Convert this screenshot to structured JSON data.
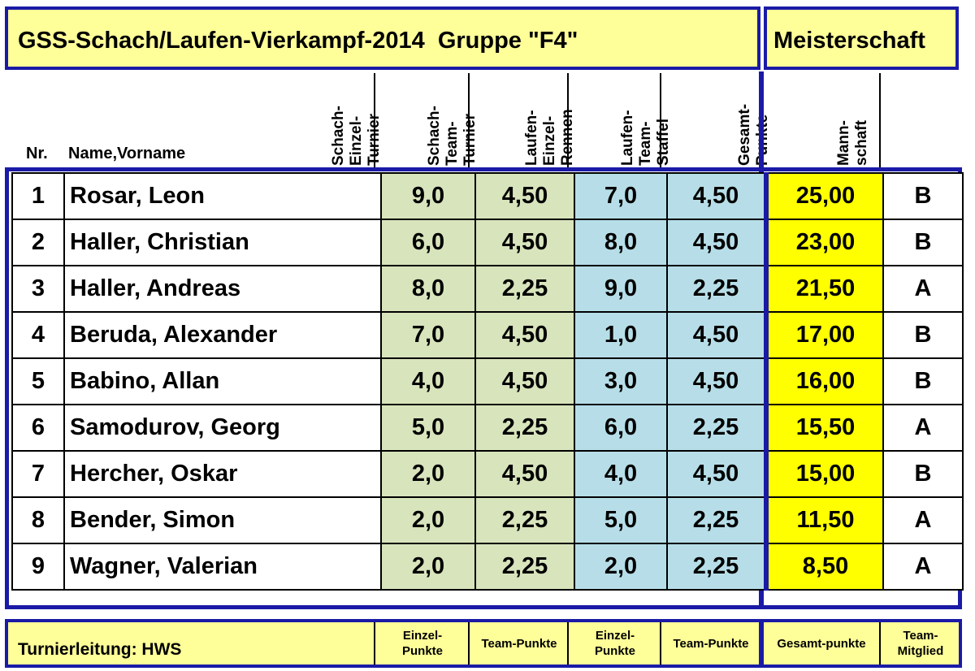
{
  "title": "GSS-Schach/Laufen-Vierkampf-2014  Gruppe \"F4\"",
  "championship": "Meisterschaft",
  "header": {
    "nr": "Nr.",
    "name": "Name,Vorname",
    "columns": [
      "Schach-\nEinzel-\nTurnier",
      "Schach-\nTeam-\nTurnier",
      "Laufen-\nEinzel-\nRennen",
      "Laufen-\nTeam-\nStaffel",
      "Gesamt-\nPunkte",
      "Mann-\nschaft"
    ]
  },
  "rows": [
    {
      "nr": "1",
      "name": "Rosar, Leon",
      "schach_einzel": "9,0",
      "schach_team": "4,50",
      "laufen_einzel": "7,0",
      "laufen_team": "4,50",
      "gesamt": "25,00",
      "mannschaft": "B"
    },
    {
      "nr": "2",
      "name": "Haller, Christian",
      "schach_einzel": "6,0",
      "schach_team": "4,50",
      "laufen_einzel": "8,0",
      "laufen_team": "4,50",
      "gesamt": "23,00",
      "mannschaft": "B"
    },
    {
      "nr": "3",
      "name": "Haller, Andreas",
      "schach_einzel": "8,0",
      "schach_team": "2,25",
      "laufen_einzel": "9,0",
      "laufen_team": "2,25",
      "gesamt": "21,50",
      "mannschaft": "A"
    },
    {
      "nr": "4",
      "name": "Beruda, Alexander",
      "schach_einzel": "7,0",
      "schach_team": "4,50",
      "laufen_einzel": "1,0",
      "laufen_team": "4,50",
      "gesamt": "17,00",
      "mannschaft": "B"
    },
    {
      "nr": "5",
      "name": "Babino, Allan",
      "schach_einzel": "4,0",
      "schach_team": "4,50",
      "laufen_einzel": "3,0",
      "laufen_team": "4,50",
      "gesamt": "16,00",
      "mannschaft": "B"
    },
    {
      "nr": "6",
      "name": "Samodurov, Georg",
      "schach_einzel": "5,0",
      "schach_team": "2,25",
      "laufen_einzel": "6,0",
      "laufen_team": "2,25",
      "gesamt": "15,50",
      "mannschaft": "A"
    },
    {
      "nr": "7",
      "name": "Hercher, Oskar",
      "schach_einzel": "2,0",
      "schach_team": "4,50",
      "laufen_einzel": "4,0",
      "laufen_team": "4,50",
      "gesamt": "15,00",
      "mannschaft": "B"
    },
    {
      "nr": "8",
      "name": "Bender, Simon",
      "schach_einzel": "2,0",
      "schach_team": "2,25",
      "laufen_einzel": "5,0",
      "laufen_team": "2,25",
      "gesamt": "11,50",
      "mannschaft": "A"
    },
    {
      "nr": "9",
      "name": "Wagner, Valerian",
      "schach_einzel": "2,0",
      "schach_team": "2,25",
      "laufen_einzel": "2,0",
      "laufen_team": "2,25",
      "gesamt": "8,50",
      "mannschaft": "A"
    }
  ],
  "footer": {
    "label": "Turnierleitung: HWS",
    "legend": [
      "Einzel-\nPunkte",
      "Team-Punkte",
      "Einzel-\nPunkte",
      "Team-Punkte",
      "Gesamt-punkte",
      "Team-\nMitglied"
    ]
  },
  "colors": {
    "frame": "#1a1aa6",
    "title_fill": "#ffff99",
    "chess_fill": "#d8e4bc",
    "running_fill": "#b7dee8",
    "total_fill": "#ffff00"
  }
}
